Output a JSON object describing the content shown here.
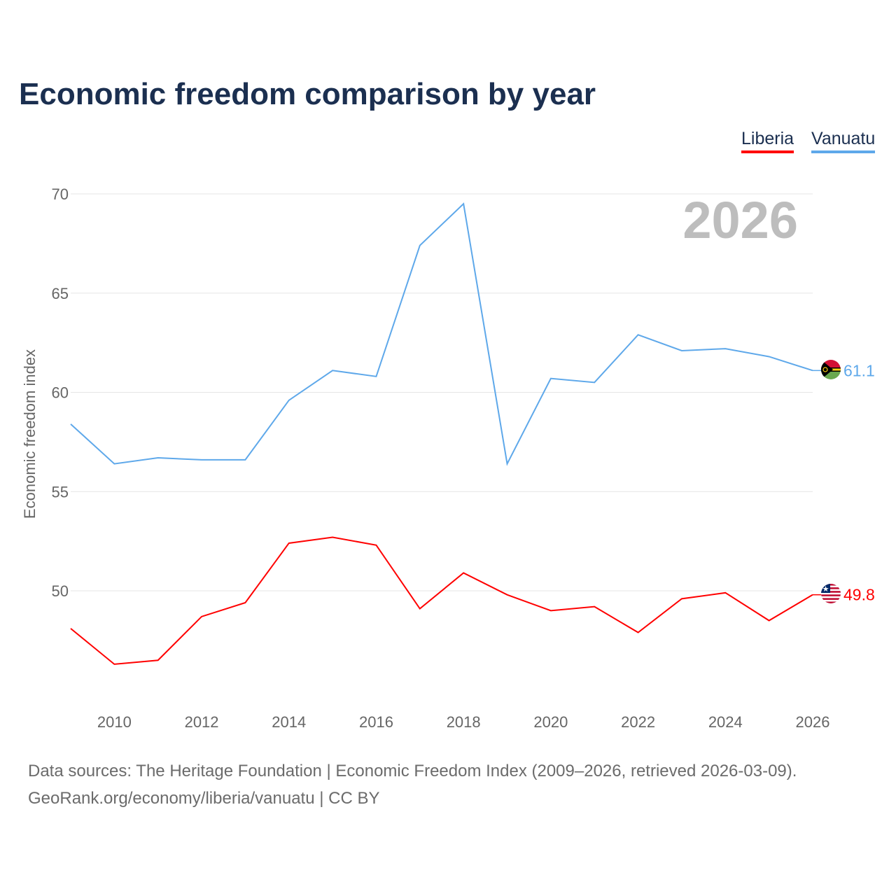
{
  "chart_data": {
    "type": "line",
    "title": "Economic freedom comparison by year",
    "xlabel": "",
    "ylabel": "Economic freedom index",
    "x": [
      2009,
      2010,
      2011,
      2012,
      2013,
      2014,
      2015,
      2016,
      2017,
      2018,
      2019,
      2020,
      2021,
      2022,
      2023,
      2024,
      2025,
      2026
    ],
    "xlim": [
      2009,
      2026
    ],
    "ylim": [
      44.3,
      70
    ],
    "x_ticks": [
      2010,
      2012,
      2014,
      2016,
      2018,
      2020,
      2022,
      2024,
      2026
    ],
    "y_ticks": [
      50,
      55,
      60,
      65,
      70
    ],
    "grid": true,
    "legend_position": "top-right",
    "watermark_year": "2026",
    "series": [
      {
        "name": "Liberia",
        "color": "#ff0000",
        "end_label": "49.8",
        "flag": "liberia-flag",
        "values": [
          48.1,
          46.3,
          46.5,
          48.7,
          49.4,
          52.4,
          52.7,
          52.3,
          49.1,
          50.9,
          49.8,
          49.0,
          49.2,
          47.9,
          49.6,
          49.9,
          48.5,
          49.8
        ]
      },
      {
        "name": "Vanuatu",
        "color": "#5ea8ea",
        "end_label": "61.1",
        "flag": "vanuatu-flag",
        "values": [
          58.4,
          56.4,
          56.7,
          56.6,
          56.6,
          59.6,
          61.1,
          60.8,
          67.4,
          69.5,
          56.4,
          60.7,
          60.5,
          62.9,
          62.1,
          62.2,
          61.8,
          61.1
        ]
      }
    ]
  },
  "footer": {
    "line1": "Data sources: The Heritage Foundation | Economic Freedom Index (2009–2026, retrieved 2026-03-09).",
    "line2": "GeoRank.org/economy/liberia/vanuatu | CC BY"
  }
}
